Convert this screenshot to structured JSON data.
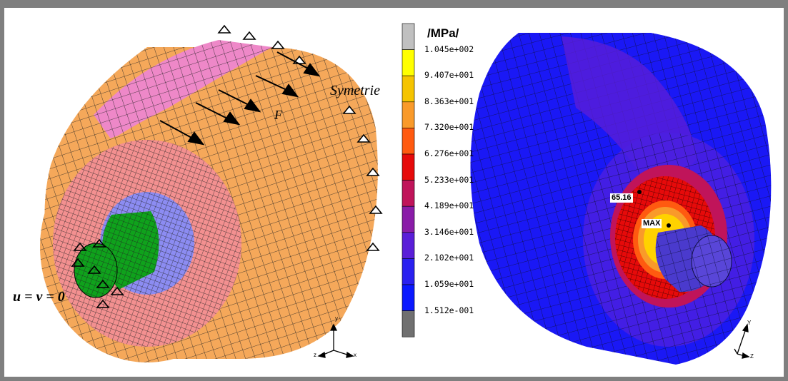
{
  "left_panel": {
    "label_symmetry": "Symetrie",
    "label_force": "F",
    "label_bc": "u = v = 0",
    "axes": {
      "x": "x",
      "y": "y",
      "z": "z"
    }
  },
  "colorbar": {
    "unit": "/MPa/",
    "ticks": [
      "1.045e+002",
      "9.407e+001",
      "8.363e+001",
      "7.320e+001",
      "6.276e+001",
      "5.233e+001",
      "4.189e+001",
      "3.146e+001",
      "2.102e+001",
      "1.059e+001",
      "1.512e-001"
    ],
    "colors": [
      "#c0c0c0",
      "#ffff00",
      "#f5c400",
      "#f99a2a",
      "#ff5a10",
      "#e60a0a",
      "#c0145a",
      "#8a1ca8",
      "#5a1ed8",
      "#2a20f0",
      "#0a18ff",
      "#707070"
    ]
  },
  "right_panel": {
    "label_value": "65.16",
    "label_max": "MAX",
    "axes": {
      "y": "Y",
      "z": "Z"
    }
  }
}
